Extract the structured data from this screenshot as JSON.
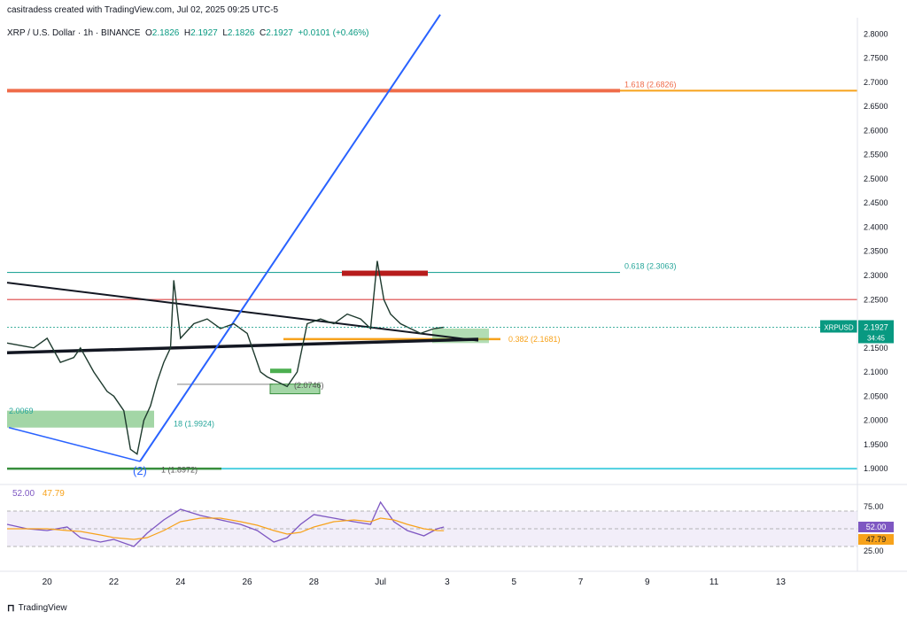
{
  "header": {
    "credit": "casitradess created with TradingView.com, Jul 02, 2025 09:25 UTC-5",
    "symbol_label": "XRP / U.S. Dollar · 1h · BINANCE",
    "open_label": "O",
    "open": "2.1826",
    "high_label": "H",
    "high": "2.1927",
    "low_label": "L",
    "low": "2.1826",
    "close_label": "C",
    "close": "2.1927",
    "change": "+0.0101 (+0.46%)"
  },
  "rsi_legend": {
    "rsi": "52.00",
    "ma": "47.79"
  },
  "price_badge": {
    "symbol": "XRPUSD",
    "price": "2.1927",
    "countdown": "34:45"
  },
  "rsi_badges": {
    "rsi": "52.00",
    "ma": "47.79"
  },
  "footer": {
    "brand": "TradingView"
  },
  "colors": {
    "up": "#089981",
    "fib_orange": "#f7a21b",
    "fib_red": "#e57373",
    "teal": "#26a69a",
    "blue_line": "#2962ff",
    "rsi_purple": "#7e57c2",
    "cyan": "#4dd0e1"
  },
  "chart_data": {
    "type": "line",
    "title": "XRP / U.S. Dollar · 1h · BINANCE",
    "y_ticks": [
      "2.8000",
      "2.7500",
      "2.7000",
      "2.6500",
      "2.6000",
      "2.5500",
      "2.5000",
      "2.4500",
      "2.4000",
      "2.3500",
      "2.3000",
      "2.2500",
      "2.2000",
      "2.1500",
      "2.1000",
      "2.0500",
      "2.0000",
      "1.9500",
      "1.9000"
    ],
    "ylim": [
      1.88,
      2.83
    ],
    "x_ticks": [
      "20",
      "22",
      "24",
      "26",
      "28",
      "Jul",
      "3",
      "5",
      "7",
      "9",
      "11",
      "13"
    ],
    "xlim_days": [
      18.8,
      44.3
    ],
    "x_tick_days": [
      20,
      22,
      24,
      26,
      28,
      30,
      32,
      34,
      36,
      38,
      40,
      42
    ],
    "price_series": {
      "name": "XRPUSD",
      "x_days": [
        18.8,
        19.2,
        19.6,
        20.0,
        20.4,
        20.8,
        21.0,
        21.4,
        21.8,
        22.0,
        22.3,
        22.5,
        22.7,
        22.9,
        23.1,
        23.3,
        23.5,
        23.7,
        23.8,
        24.0,
        24.4,
        24.8,
        25.2,
        25.6,
        26.0,
        26.4,
        26.6,
        26.9,
        27.2,
        27.5,
        27.8,
        28.2,
        28.6,
        29.0,
        29.4,
        29.7,
        29.9,
        30.1,
        30.3,
        30.6,
        30.9,
        31.2,
        31.6,
        31.9
      ],
      "values": [
        2.16,
        2.155,
        2.15,
        2.17,
        2.12,
        2.13,
        2.15,
        2.1,
        2.06,
        2.05,
        2.02,
        1.94,
        1.93,
        2.0,
        2.03,
        2.08,
        2.12,
        2.15,
        2.29,
        2.17,
        2.2,
        2.21,
        2.19,
        2.2,
        2.18,
        2.1,
        2.09,
        2.08,
        2.07,
        2.1,
        2.2,
        2.21,
        2.2,
        2.22,
        2.21,
        2.19,
        2.33,
        2.25,
        2.22,
        2.2,
        2.19,
        2.18,
        2.19,
        2.1927
      ]
    },
    "fib_levels": [
      {
        "label": "1.618 (2.6826)",
        "value": 2.6826
      },
      {
        "label": "0.618 (2.3063)",
        "value": 2.3063
      },
      {
        "label": "0.382 (2.1681)",
        "value": 2.1681
      },
      {
        "label": "(2.0746)",
        "value": 2.0746
      },
      {
        "label": "2.0069",
        "value": 2.0069
      },
      {
        "label": "18 (1.9924)",
        "value": 1.9924
      },
      {
        "label": "1 (1.8972)",
        "value": 1.8972
      }
    ],
    "horizontal_levels": [
      2.6826,
      2.3063,
      2.25,
      2.1681,
      1.9
    ],
    "wave_label": "(2)",
    "rsi": {
      "ylim": [
        15,
        85
      ],
      "y_ticks": [
        "75.00",
        "50.00",
        "25.00"
      ],
      "levels": [
        70,
        50,
        30
      ],
      "x_days": [
        18.8,
        19.4,
        20.0,
        20.6,
        21.0,
        21.6,
        22.0,
        22.6,
        23.0,
        23.5,
        24.0,
        24.6,
        25.2,
        25.8,
        26.3,
        26.8,
        27.2,
        27.6,
        28.0,
        28.6,
        29.2,
        29.7,
        30.0,
        30.4,
        30.8,
        31.3,
        31.7,
        31.9
      ],
      "rsi_values": [
        55,
        50,
        48,
        52,
        40,
        35,
        38,
        30,
        45,
        60,
        72,
        65,
        60,
        55,
        48,
        35,
        40,
        55,
        66,
        62,
        58,
        55,
        80,
        58,
        48,
        42,
        50,
        52
      ],
      "ma_values": [
        50,
        50,
        50,
        48,
        47,
        43,
        40,
        38,
        40,
        48,
        58,
        62,
        62,
        58,
        54,
        48,
        44,
        46,
        52,
        58,
        60,
        58,
        62,
        60,
        55,
        50,
        48,
        47.79
      ]
    }
  }
}
